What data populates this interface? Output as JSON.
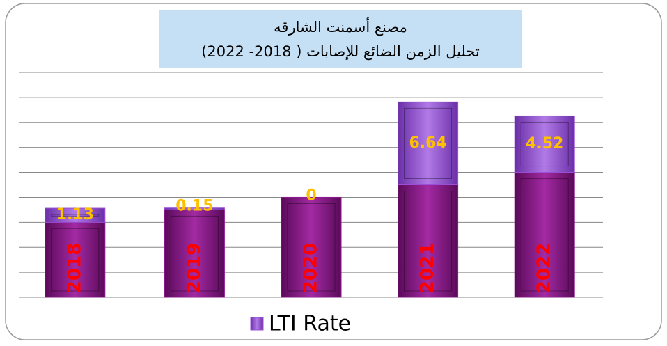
{
  "chart_data": {
    "type": "bar",
    "stacked": true,
    "title": "مصنع أسمنت الشارقه",
    "subtitle": "تحليل الزمن الضائع للإصابات ( 2018- 2022)",
    "categories": [
      "2018",
      "2019",
      "2020",
      "2021",
      "2022"
    ],
    "series": [
      {
        "color": "#8e1a8e",
        "values": [
          6,
          7,
          8,
          9,
          10
        ]
      },
      {
        "name": "LTI Rate",
        "color": "#9a4fd6",
        "values": [
          1.13,
          0.15,
          0,
          6.64,
          4.52
        ]
      }
    ],
    "ylim": [
      0,
      18
    ],
    "yticks": [
      0,
      2,
      4,
      6,
      8,
      10,
      12,
      14,
      16,
      18
    ],
    "grid": true,
    "legend": "bottom"
  }
}
